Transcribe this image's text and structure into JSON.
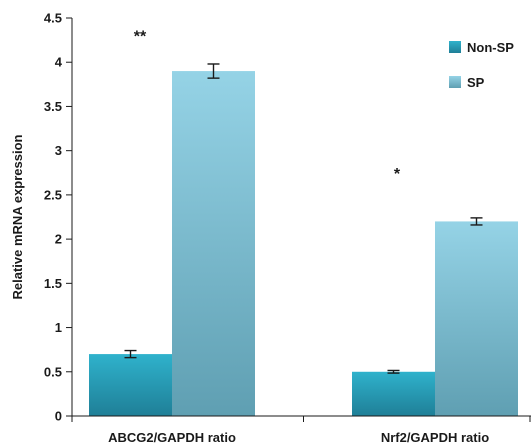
{
  "chart_data": {
    "type": "bar",
    "title": "",
    "xlabel": "",
    "ylabel": "Relative mRNA expression",
    "ylim": [
      0,
      4.5
    ],
    "yticks": [
      0,
      0.5,
      1,
      1.5,
      2,
      2.5,
      3,
      3.5,
      4,
      4.5
    ],
    "ytick_labels": [
      "0",
      "0.5",
      "1",
      "1.5",
      "2",
      "2.5",
      "3",
      "3.5",
      "4",
      "4.5"
    ],
    "categories": [
      "ABCG2/GAPDH ratio",
      "Nrf2/GAPDH ratio"
    ],
    "series": [
      {
        "name": "Non-SP",
        "values": [
          0.7,
          0.5
        ],
        "errors": [
          0.04,
          0.015
        ],
        "color_top": "#2fb2cc",
        "color_bottom": "#1f7f97"
      },
      {
        "name": "SP",
        "values": [
          3.9,
          2.2
        ],
        "errors": [
          0.08,
          0.04
        ],
        "color_top": "#95d3e6",
        "color_bottom": "#5f9fb2"
      }
    ],
    "annotations": [
      {
        "text": "**",
        "category_index": 0,
        "value": 4.3
      },
      {
        "text": "*",
        "category_index": 1,
        "value": 2.75
      }
    ],
    "grid": false,
    "legend_position": "top-right"
  }
}
